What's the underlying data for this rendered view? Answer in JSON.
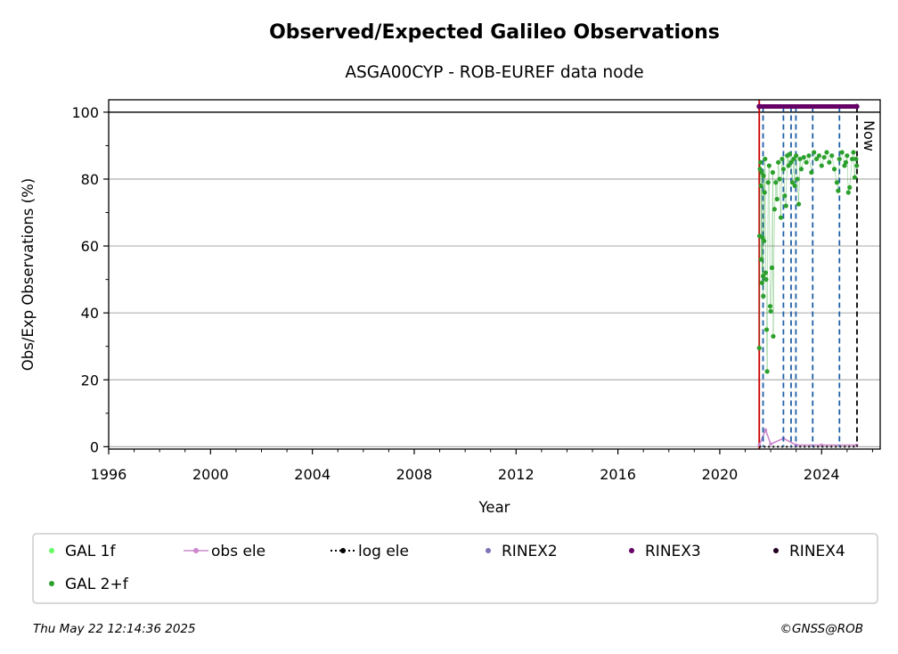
{
  "chart_data": {
    "type": "scatter",
    "title": "Observed/Expected Galileo Observations",
    "subtitle": "ASGA00CYP - ROB-EUREF data node",
    "xlabel": "Year",
    "ylabel": "Obs/Exp Observations (%)",
    "xlim": [
      1996,
      2026.3
    ],
    "ylim": [
      -0.7,
      103.7
    ],
    "xticks": [
      1996,
      2000,
      2004,
      2008,
      2012,
      2016,
      2020,
      2024
    ],
    "yticks": [
      0,
      20,
      40,
      60,
      80,
      100
    ],
    "grid": "horizontal",
    "now_label": "Now",
    "now_year": 2025.39,
    "start_year": 2021.55,
    "equipment_changes": [
      2021.7,
      2022.5,
      2022.8,
      2022.99,
      2023.65,
      2024.7
    ],
    "colors": {
      "gal_1f": "#66ff66",
      "gal_2f": "#2ca02c",
      "obs_ele": "#cc88cc",
      "log_ele": "#000000",
      "rinex2": "#7b73b8",
      "rinex3": "#660066",
      "rinex4": "#220022",
      "event_line": "#1f5fa8",
      "start_line": "#cc0000"
    },
    "series": [
      {
        "name": "GAL 2+f",
        "points": [
          [
            2021.55,
            29.5
          ],
          [
            2021.56,
            63
          ],
          [
            2021.58,
            83
          ],
          [
            2021.6,
            85
          ],
          [
            2021.62,
            78
          ],
          [
            2021.63,
            56
          ],
          [
            2021.65,
            82
          ],
          [
            2021.66,
            49
          ],
          [
            2021.68,
            62.5
          ],
          [
            2021.7,
            51
          ],
          [
            2021.71,
            45
          ],
          [
            2021.72,
            81
          ],
          [
            2021.74,
            61.5
          ],
          [
            2021.76,
            76
          ],
          [
            2021.78,
            86
          ],
          [
            2021.8,
            52
          ],
          [
            2021.82,
            50
          ],
          [
            2021.84,
            35
          ],
          [
            2021.86,
            22.5
          ],
          [
            2021.9,
            79
          ],
          [
            2021.94,
            84
          ],
          [
            2021.98,
            42
          ],
          [
            2022.0,
            40.5
          ],
          [
            2022.05,
            53.5
          ],
          [
            2022.08,
            82
          ],
          [
            2022.1,
            33
          ],
          [
            2022.15,
            71
          ],
          [
            2022.2,
            79
          ],
          [
            2022.25,
            74
          ],
          [
            2022.3,
            85
          ],
          [
            2022.35,
            80
          ],
          [
            2022.4,
            68.5
          ],
          [
            2022.45,
            86
          ],
          [
            2022.5,
            83
          ],
          [
            2022.55,
            75
          ],
          [
            2022.6,
            72
          ],
          [
            2022.65,
            87
          ],
          [
            2022.7,
            84
          ],
          [
            2022.75,
            87.5
          ],
          [
            2022.8,
            85
          ],
          [
            2022.85,
            79
          ],
          [
            2022.9,
            86
          ],
          [
            2022.95,
            78
          ],
          [
            2023.0,
            87
          ],
          [
            2023.05,
            80
          ],
          [
            2023.1,
            72.5
          ],
          [
            2023.15,
            86
          ],
          [
            2023.2,
            83
          ],
          [
            2023.3,
            86.5
          ],
          [
            2023.4,
            85
          ],
          [
            2023.5,
            87
          ],
          [
            2023.6,
            82
          ],
          [
            2023.7,
            88
          ],
          [
            2023.8,
            86
          ],
          [
            2023.9,
            87
          ],
          [
            2024.0,
            84
          ],
          [
            2024.1,
            86.5
          ],
          [
            2024.2,
            88
          ],
          [
            2024.3,
            85
          ],
          [
            2024.4,
            87
          ],
          [
            2024.5,
            83
          ],
          [
            2024.6,
            79
          ],
          [
            2024.65,
            76.5
          ],
          [
            2024.7,
            86
          ],
          [
            2024.8,
            88
          ],
          [
            2024.9,
            84
          ],
          [
            2024.95,
            85
          ],
          [
            2025.0,
            87
          ],
          [
            2025.05,
            76
          ],
          [
            2025.1,
            77.5
          ],
          [
            2025.2,
            86
          ],
          [
            2025.25,
            88
          ],
          [
            2025.3,
            80.5
          ],
          [
            2025.35,
            86
          ],
          [
            2025.38,
            84
          ]
        ]
      },
      {
        "name": "obs ele",
        "points": [
          [
            2021.55,
            0.5
          ],
          [
            2021.8,
            5
          ],
          [
            2022.0,
            0.8
          ],
          [
            2022.5,
            2.5
          ],
          [
            2023.0,
            0.5
          ],
          [
            2024.0,
            0.5
          ],
          [
            2025.38,
            0.5
          ]
        ]
      },
      {
        "name": "RINEX3",
        "points": [
          [
            2021.55,
            101.7
          ],
          [
            2025.38,
            101.7
          ]
        ]
      }
    ],
    "legend": {
      "placement": "bottom",
      "entries": [
        {
          "label": "GAL 1f",
          "key": "gal_1f",
          "style": "dot"
        },
        {
          "label": "obs ele",
          "key": "obs_ele",
          "style": "line-dot"
        },
        {
          "label": "log ele",
          "key": "log_ele",
          "style": "dotted-line-dot"
        },
        {
          "label": "RINEX2",
          "key": "rinex2",
          "style": "dot"
        },
        {
          "label": "RINEX3",
          "key": "rinex3",
          "style": "dot"
        },
        {
          "label": "RINEX4",
          "key": "rinex4",
          "style": "dot"
        },
        {
          "label": "GAL 2+f",
          "key": "gal_2f",
          "style": "dot"
        }
      ]
    }
  },
  "footer": {
    "timestamp": "Thu May 22 12:14:36 2025",
    "credit": "©GNSS@ROB"
  }
}
